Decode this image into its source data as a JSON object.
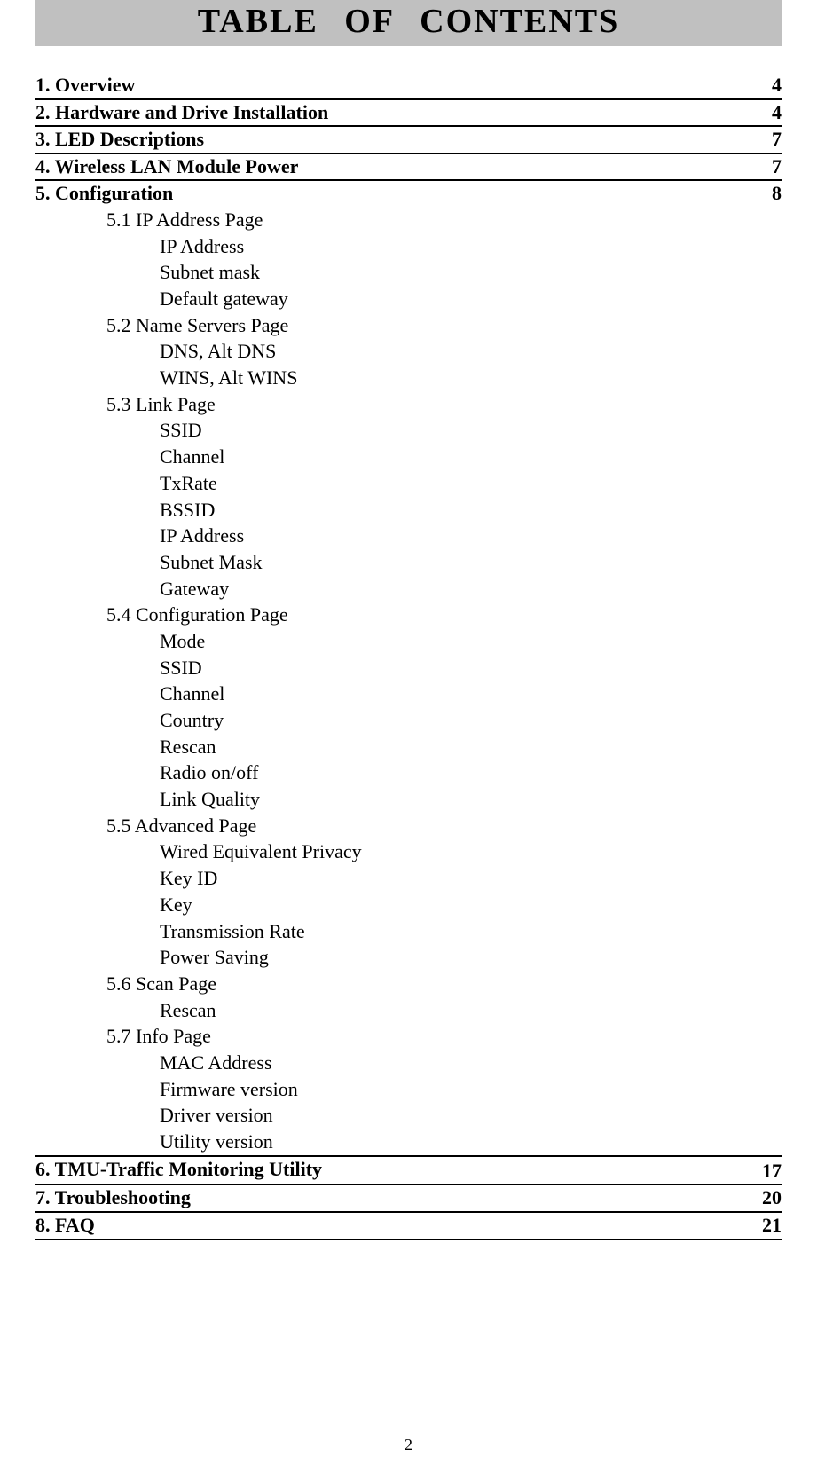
{
  "title": "TABLE OF CONTENTS",
  "sections": {
    "s1": {
      "label": "1. Overview",
      "page": "4"
    },
    "s2": {
      "label": "2. Hardware and Drive Installation",
      "page": "4"
    },
    "s3": {
      "label": "3. LED Descriptions",
      "page": "7"
    },
    "s4": {
      "label": "4. Wireless LAN Module Power",
      "page": "7"
    },
    "s5": {
      "label": "5. Configuration",
      "page": "8"
    },
    "s6": {
      "label": "6. TMU-Traffic Monitoring Utility",
      "page": "17"
    },
    "s7": {
      "label": "7. Troubleshooting",
      "page": "20"
    },
    "s8": {
      "label": "8. FAQ",
      "page": "21"
    }
  },
  "subsections": {
    "s5_1": "5.1 IP Address Page",
    "s5_1_1": "IP Address",
    "s5_1_2": "Subnet mask",
    "s5_1_3": "Default gateway",
    "s5_2": "5.2 Name Servers Page",
    "s5_2_1": "DNS, Alt DNS",
    "s5_2_2": "WINS, Alt WINS",
    "s5_3": "5.3 Link Page",
    "s5_3_1": "SSID",
    "s5_3_2": "Channel",
    "s5_3_3": "TxRate",
    "s5_3_4": "BSSID",
    "s5_3_5": "IP Address",
    "s5_3_6": "Subnet Mask",
    "s5_3_7": "Gateway",
    "s5_4": "5.4 Configuration Page",
    "s5_4_1": "Mode",
    "s5_4_2": "SSID",
    "s5_4_3": "Channel",
    "s5_4_4": "Country",
    "s5_4_5": "Rescan",
    "s5_4_6": "Radio on/off",
    "s5_4_7": "Link Quality",
    "s5_5": "5.5 Advanced Page",
    "s5_5_1": "Wired Equivalent Privacy",
    "s5_5_2": "Key ID",
    "s5_5_3": "Key",
    "s5_5_4": "Transmission Rate",
    "s5_5_5": "Power Saving",
    "s5_6": "5.6 Scan Page",
    "s5_6_1": "Rescan",
    "s5_7": "5.7 Info Page",
    "s5_7_1": "MAC Address",
    "s5_7_2": "Firmware version",
    "s5_7_3": "Driver version",
    "s5_7_4": "Utility version"
  },
  "page_number": "2",
  "colors": {
    "title_bg": "#c0c0c0",
    "text": "#000000",
    "background": "#ffffff",
    "rule": "#000000"
  },
  "typography": {
    "title_fontsize": 38,
    "section_fontsize": 22,
    "body_fontsize": 22,
    "page_number_fontsize": 18,
    "font_family": "Times New Roman"
  }
}
